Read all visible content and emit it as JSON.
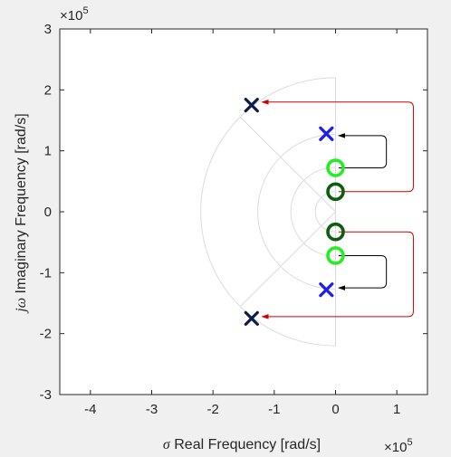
{
  "chart_data": {
    "type": "scatter",
    "xlabel_symbol": "σ",
    "xlabel_text": " Real Frequency [rad/s]",
    "ylabel_symbol": "jω",
    "ylabel_text": " Imaginary Frequency [rad/s]",
    "x_exponent_base": "×10",
    "x_exponent_power": "5",
    "y_exponent_base": "×10",
    "y_exponent_power": "5",
    "xlim": [
      -4.5,
      1.5
    ],
    "ylim": [
      -3,
      3
    ],
    "xticks": [
      -4,
      -3,
      -2,
      -1,
      0,
      1
    ],
    "xtick_labels": [
      "-4",
      "-3",
      "-2",
      "-1",
      "0",
      "1"
    ],
    "yticks": [
      -3,
      -2,
      -1,
      0,
      1,
      2,
      3
    ],
    "ytick_labels": [
      "-3",
      "-2",
      "-1",
      "0",
      "1",
      "2",
      "3"
    ],
    "grid_polar_radii": [
      0.33,
      0.73,
      1.27,
      2.2
    ],
    "grid_polar_angles_deg": [
      45
    ],
    "poles_dark": {
      "marker": "x",
      "color": "#0d1b4f",
      "points": [
        [
          -1.37,
          1.75
        ],
        [
          -1.37,
          -1.75
        ]
      ]
    },
    "poles_blue": {
      "marker": "x",
      "color": "#1f1fe6",
      "points": [
        [
          -0.15,
          1.28
        ],
        [
          -0.15,
          -1.28
        ]
      ]
    },
    "zeros_light": {
      "marker": "o",
      "color": "#22ee22",
      "points": [
        [
          0.0,
          0.72
        ],
        [
          0.0,
          -0.72
        ]
      ]
    },
    "zeros_dark": {
      "marker": "o",
      "color": "#0e5c0e",
      "points": [
        [
          0.0,
          0.33
        ],
        [
          0.0,
          -0.33
        ]
      ]
    },
    "arrows": [
      {
        "color": "#cc0000",
        "from": [
          0.05,
          0.33
        ],
        "to": [
          -1.2,
          1.8
        ],
        "via_x": 1.27
      },
      {
        "color": "#000000",
        "from": [
          0.05,
          0.72
        ],
        "to": [
          0.05,
          1.25
        ],
        "via_x": 0.83
      },
      {
        "color": "#cc0000",
        "from": [
          0.05,
          -0.33
        ],
        "to": [
          -1.2,
          -1.72
        ],
        "via_x": 1.27
      },
      {
        "color": "#000000",
        "from": [
          0.05,
          -0.72
        ],
        "to": [
          0.05,
          -1.25
        ],
        "via_x": 0.83
      }
    ]
  }
}
